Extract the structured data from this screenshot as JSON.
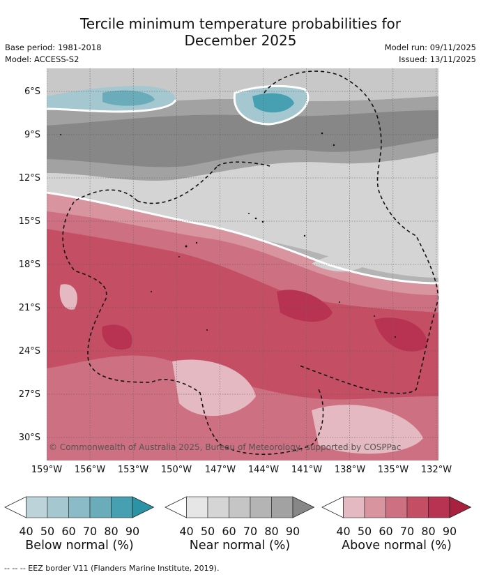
{
  "title_line1": "Tercile minimum temperature probabilities for",
  "title_line2": "December 2025",
  "base_period": "Base period: 1981-2018",
  "model": "Model: ACCESS-S2",
  "model_run": "Model run: 09/11/2025",
  "issued": "Issued: 13/11/2025",
  "map": {
    "lat_labels": [
      "6°S",
      "9°S",
      "12°S",
      "15°S",
      "18°S",
      "21°S",
      "24°S",
      "27°S",
      "30°S"
    ],
    "lon_labels": [
      "159°W",
      "156°W",
      "153°W",
      "150°W",
      "147°W",
      "144°W",
      "141°W",
      "138°W",
      "135°W",
      "132°W"
    ],
    "copyright": "© Commonwealth of Australia 2025, Bureau of Meteorology, supported by COSPPac"
  },
  "colorbars": [
    {
      "title": "Below normal (%)",
      "ticks": [
        "40",
        "50",
        "60",
        "70",
        "80",
        "90"
      ],
      "colors": [
        "#ffffff",
        "#bcd3da",
        "#a5c7d0",
        "#8bbbc6",
        "#6aacba",
        "#47a0b2",
        "#2a94a6"
      ]
    },
    {
      "title": "Near normal (%)",
      "ticks": [
        "40",
        "50",
        "60",
        "70",
        "80",
        "90"
      ],
      "colors": [
        "#ffffff",
        "#e6e6e6",
        "#d5d5d5",
        "#c5c5c5",
        "#b4b4b4",
        "#a2a2a2",
        "#878787"
      ]
    },
    {
      "title": "Above normal (%)",
      "ticks": [
        "40",
        "50",
        "60",
        "70",
        "80",
        "90"
      ],
      "colors": [
        "#ffffff",
        "#e4b9c1",
        "#d9959f",
        "#cd7081",
        "#c44e63",
        "#b83352",
        "#a8213f"
      ]
    }
  ],
  "footer": "--  --  -- EEZ border V11 (Flanders Marine Institute, 2019).",
  "palette": {
    "gray_light": "#d4d4d4",
    "gray_mid": "#b4b4b4",
    "gray_dark": "#a2a2a2",
    "gray_darkest": "#878787",
    "blue_light": "#a5c7d0",
    "blue_mid": "#6aacba",
    "blue_dark": "#47a0b2",
    "red_light": "#e4b9c1",
    "red_mid": "#d9959f",
    "red_60": "#cd7081",
    "red_70": "#c44e63",
    "red_80": "#b83352"
  }
}
